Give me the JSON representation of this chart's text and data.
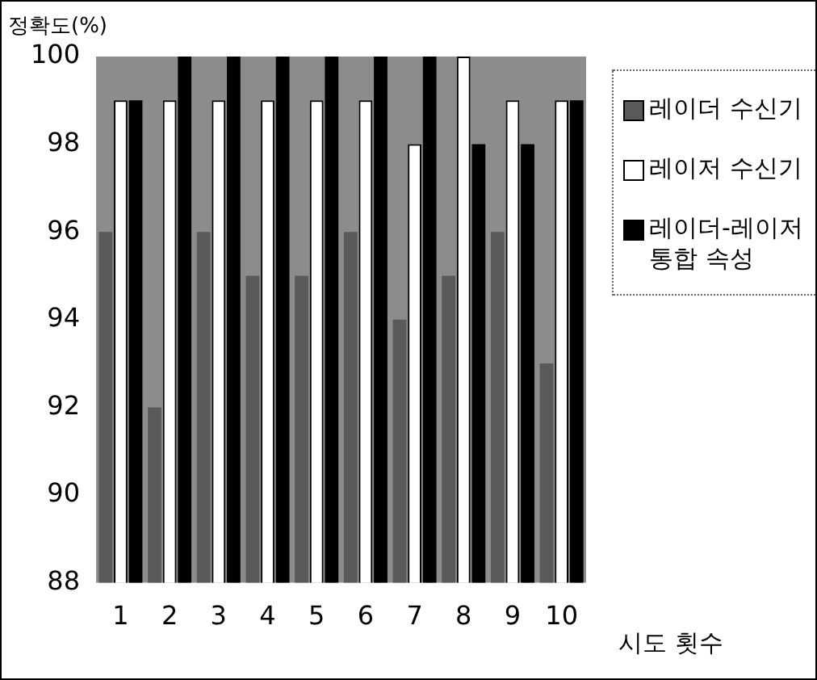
{
  "chart_data": {
    "type": "bar",
    "xlabel": "시도 횟수",
    "ylabel": "정확도(%)",
    "categories": [
      "1",
      "2",
      "3",
      "4",
      "5",
      "6",
      "7",
      "8",
      "9",
      "10"
    ],
    "series": [
      {
        "name": "레이더 수신기",
        "color": "#5a5a5a",
        "values": [
          96,
          92,
          96,
          95,
          95,
          96,
          94,
          95,
          96,
          93
        ]
      },
      {
        "name": "레이저 수신기",
        "color": "#ffffff",
        "values": [
          99,
          99,
          99,
          99,
          99,
          99,
          98,
          100,
          99,
          99
        ]
      },
      {
        "name": "레이더-레이저 통합 속성",
        "color": "#000000",
        "values": [
          99,
          100,
          100,
          100,
          100,
          100,
          100,
          98,
          98,
          99
        ]
      }
    ],
    "ylim": [
      88,
      100
    ],
    "yticks": [
      88,
      90,
      92,
      94,
      96,
      98,
      100
    ],
    "grid": false,
    "legend": "top right"
  }
}
